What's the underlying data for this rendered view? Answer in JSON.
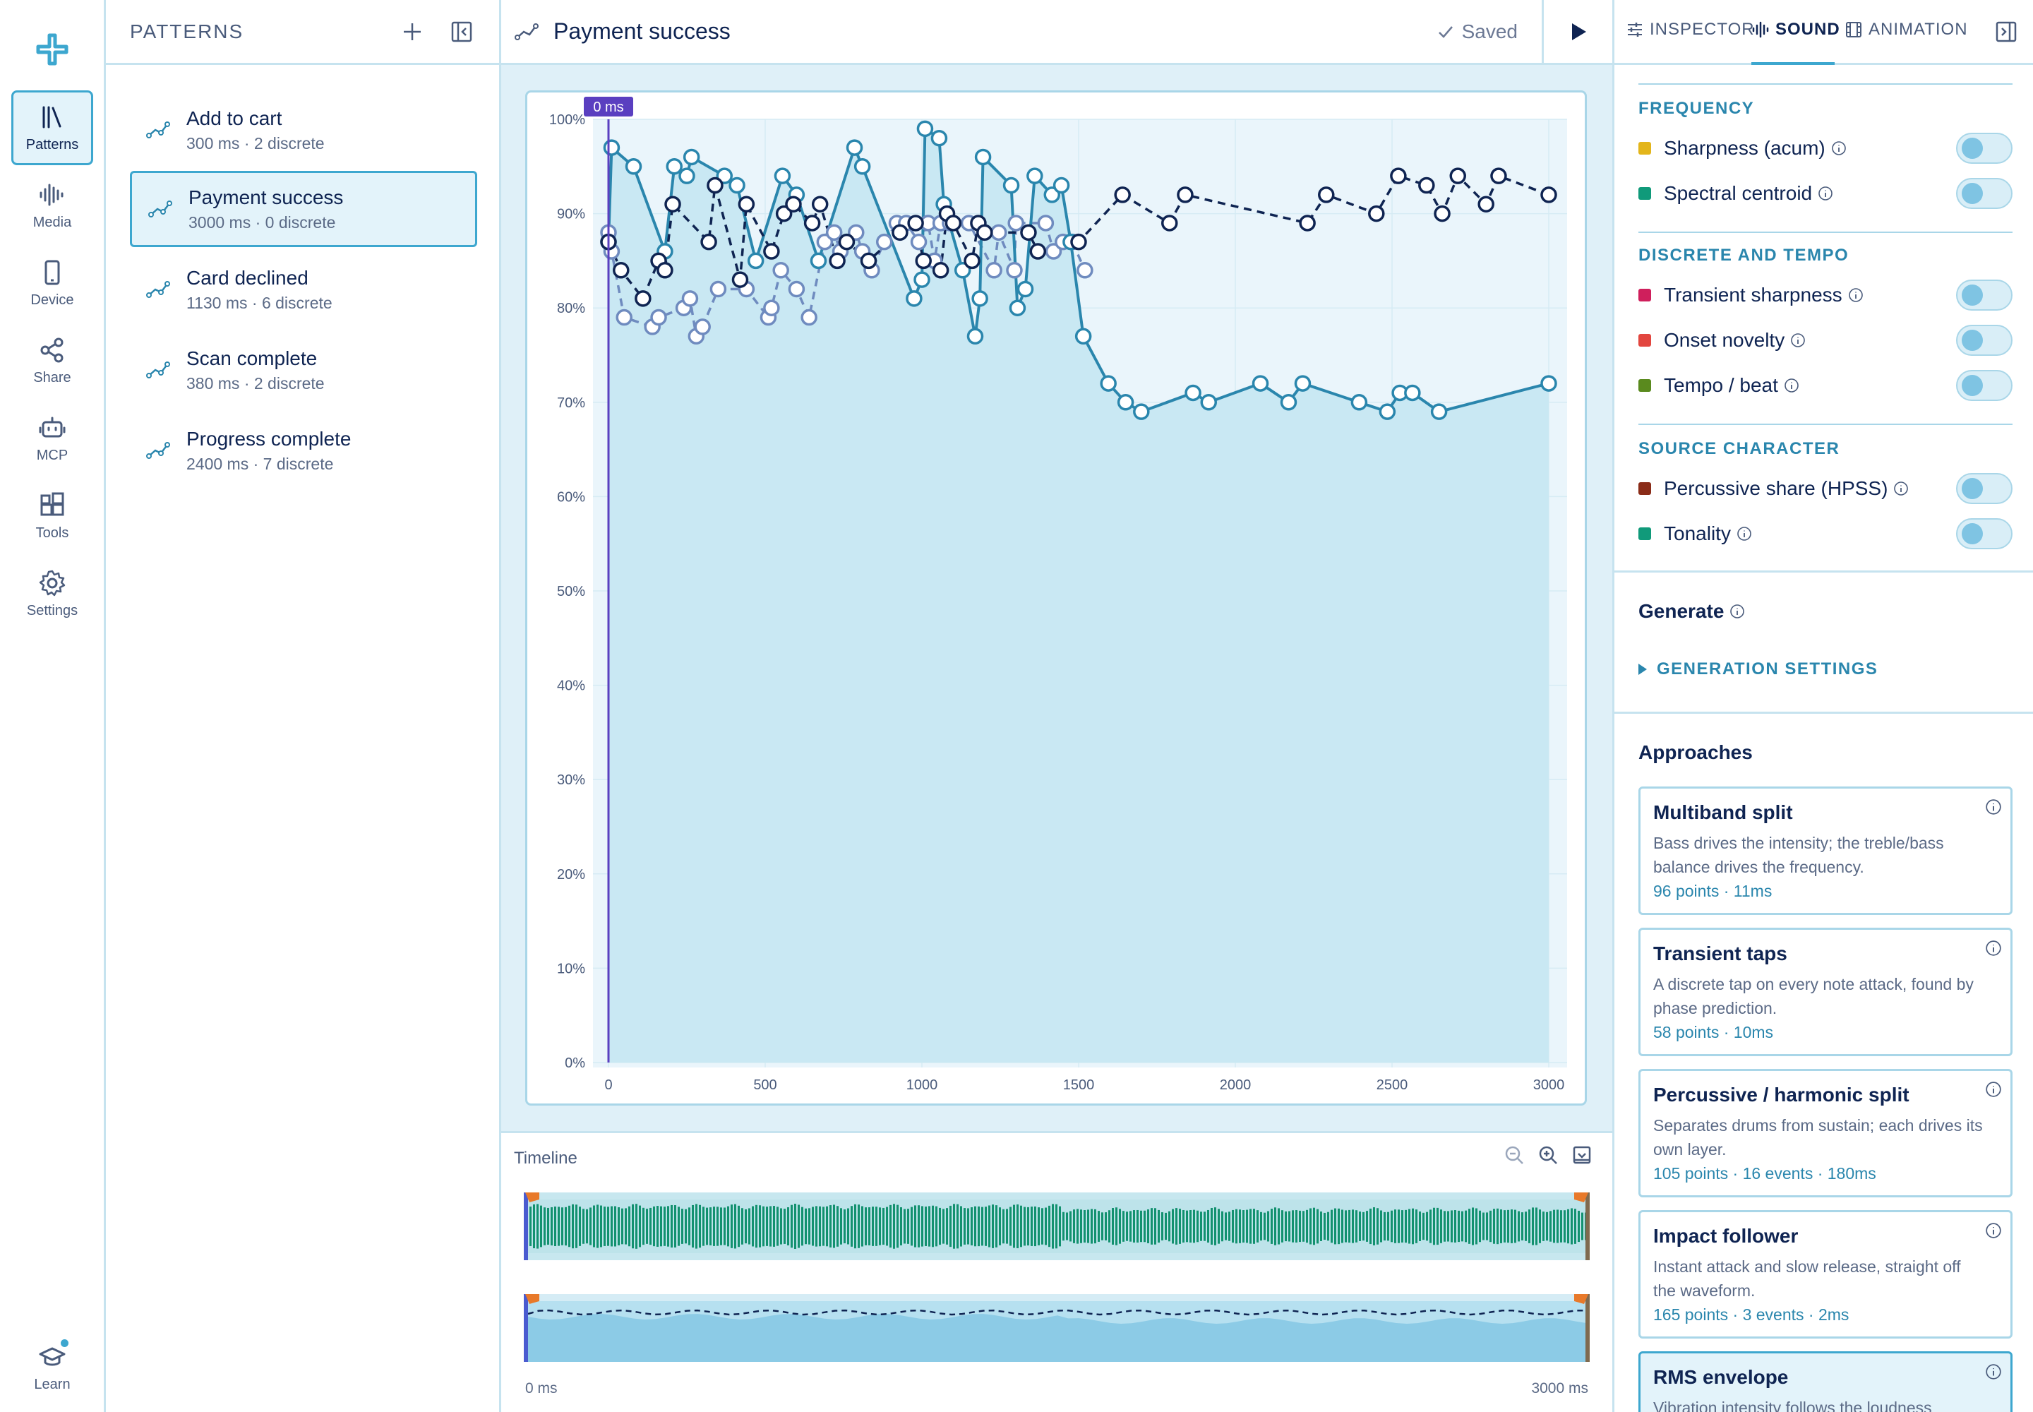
{
  "rail": {
    "items": [
      {
        "label": "Patterns",
        "icon": "library-icon"
      },
      {
        "label": "Media",
        "icon": "waveform-icon"
      },
      {
        "label": "Device",
        "icon": "phone-icon"
      },
      {
        "label": "Share",
        "icon": "share-icon"
      },
      {
        "label": "MCP",
        "icon": "robot-icon"
      },
      {
        "label": "Tools",
        "icon": "widgets-icon"
      },
      {
        "label": "Settings",
        "icon": "gear-icon"
      }
    ],
    "learn_label": "Learn"
  },
  "patterns": {
    "title": "PATTERNS",
    "items": [
      {
        "name": "Add to cart",
        "meta": "300 ms · 2 discrete"
      },
      {
        "name": "Payment success",
        "meta": "3000 ms · 0 discrete"
      },
      {
        "name": "Card declined",
        "meta": "1130 ms · 6 discrete"
      },
      {
        "name": "Scan complete",
        "meta": "380 ms · 2 discrete"
      },
      {
        "name": "Progress complete",
        "meta": "2400 ms · 7 discrete"
      }
    ]
  },
  "editor": {
    "title": "Payment success",
    "saved_label": "Saved",
    "playhead_label": "0 ms"
  },
  "chart_data": {
    "type": "line",
    "xlim": [
      0,
      3000
    ],
    "ylim": [
      0,
      100
    ],
    "x_ticks": [
      "0",
      "500",
      "1000",
      "1500",
      "2000",
      "2500",
      "3000"
    ],
    "y_ticks": [
      "0%",
      "10%",
      "20%",
      "30%",
      "40%",
      "50%",
      "60%",
      "70%",
      "80%",
      "90%",
      "100%"
    ],
    "colors": {
      "intensity": "#2a86ad",
      "frequency": "#0f2452",
      "sharpness": "#6f8bbf",
      "area": "#c9e8f3"
    },
    "series": [
      {
        "key": "intensity",
        "style": "solid",
        "x": [
          0,
          10,
          80,
          180,
          210,
          250,
          265,
          370,
          410,
          470,
          555,
          600,
          670,
          785,
          810,
          975,
          1000,
          1010,
          1055,
          1070,
          1130,
          1170,
          1185,
          1195,
          1285,
          1305,
          1330,
          1360,
          1415,
          1445,
          1475,
          1515,
          1595,
          1650,
          1700,
          1865,
          1915,
          2080,
          2170,
          2215,
          2395,
          2485,
          2525,
          2565,
          2650,
          3000
        ],
        "y": [
          87,
          97,
          95,
          86,
          95,
          94,
          96,
          94,
          93,
          85,
          94,
          92,
          85,
          97,
          95,
          81,
          83,
          99,
          98,
          91,
          84,
          77,
          81,
          96,
          93,
          80,
          82,
          94,
          92,
          93,
          87,
          77,
          72,
          70,
          69,
          71,
          70,
          72,
          70,
          72,
          70,
          69,
          71,
          71,
          69,
          72
        ]
      },
      {
        "key": "frequency",
        "style": "dashed",
        "x": [
          0,
          40,
          110,
          160,
          180,
          205,
          320,
          340,
          420,
          440,
          520,
          560,
          590,
          650,
          675,
          730,
          760,
          830,
          930,
          980,
          1005,
          1060,
          1080,
          1100,
          1160,
          1180,
          1200,
          1340,
          1370,
          1500,
          1640,
          1790,
          1840,
          2230,
          2290,
          2450,
          2520,
          2610,
          2660,
          2710,
          2800,
          2840,
          3000
        ],
        "y": [
          87,
          84,
          81,
          85,
          84,
          91,
          87,
          93,
          83,
          91,
          86,
          90,
          91,
          89,
          91,
          85,
          87,
          85,
          88,
          89,
          85,
          84,
          90,
          89,
          85,
          89,
          88,
          88,
          86,
          87,
          92,
          89,
          92,
          89,
          92,
          90,
          94,
          93,
          90,
          94,
          91,
          94,
          92
        ]
      },
      {
        "key": "sharpness",
        "style": "dashed",
        "x": [
          0,
          10,
          50,
          140,
          160,
          240,
          260,
          280,
          300,
          350,
          440,
          510,
          520,
          550,
          600,
          640,
          690,
          720,
          740,
          790,
          810,
          840,
          880,
          920,
          950,
          990,
          1020,
          1040,
          1060,
          1090,
          1150,
          1230,
          1245,
          1295,
          1300,
          1395,
          1420,
          1450,
          1480,
          1520
        ],
        "y": [
          88,
          86,
          79,
          78,
          79,
          80,
          81,
          77,
          78,
          82,
          82,
          79,
          80,
          84,
          82,
          79,
          87,
          88,
          86,
          88,
          86,
          84,
          87,
          89,
          89,
          87,
          89,
          85,
          89,
          89,
          89,
          84,
          88,
          84,
          89,
          89,
          86,
          87,
          87,
          84
        ]
      }
    ]
  },
  "timeline": {
    "label": "Timeline",
    "start_label": "0 ms",
    "end_label": "3000 ms"
  },
  "inspector": {
    "tabs": [
      {
        "label": "INSPECTOR",
        "icon": "sliders-icon"
      },
      {
        "label": "SOUND",
        "icon": "waveform-icon"
      },
      {
        "label": "ANIMATION",
        "icon": "film-icon"
      }
    ],
    "sections": [
      {
        "title": "FREQUENCY",
        "features": [
          {
            "label": "Sharpness (acum)",
            "color": "#e3b51b"
          },
          {
            "label": "Spectral centroid",
            "color": "#109a7a"
          }
        ]
      },
      {
        "title": "DISCRETE AND TEMPO",
        "features": [
          {
            "label": "Transient sharpness",
            "color": "#cf1f5c"
          },
          {
            "label": "Onset novelty",
            "color": "#e2463f"
          },
          {
            "label": "Tempo / beat",
            "color": "#5a8a1e"
          }
        ]
      },
      {
        "title": "SOURCE CHARACTER",
        "features": [
          {
            "label": "Percussive share (HPSS)",
            "color": "#8a2c18"
          },
          {
            "label": "Tonality",
            "color": "#109a7a"
          }
        ]
      }
    ],
    "generate_title": "Generate",
    "generation_settings": "GENERATION SETTINGS",
    "approaches_title": "Approaches",
    "approaches": [
      {
        "title": "Multiband split",
        "desc": "Bass drives the intensity; the treble/bass balance drives the frequency.",
        "stats": "96 points · 11ms"
      },
      {
        "title": "Transient taps",
        "desc": "A discrete tap on every note attack, found by phase prediction.",
        "stats": "58 points · 10ms"
      },
      {
        "title": "Percussive / harmonic split",
        "desc": "Separates drums from sustain; each drives its own layer.",
        "stats": "105 points · 16 events · 180ms"
      },
      {
        "title": "Impact follower",
        "desc": "Instant attack and slow release, straight off the waveform.",
        "stats": "165 points · 3 events · 2ms"
      },
      {
        "title": "RMS envelope",
        "desc": "Vibration intensity follows the loudness",
        "stats": ""
      }
    ]
  }
}
